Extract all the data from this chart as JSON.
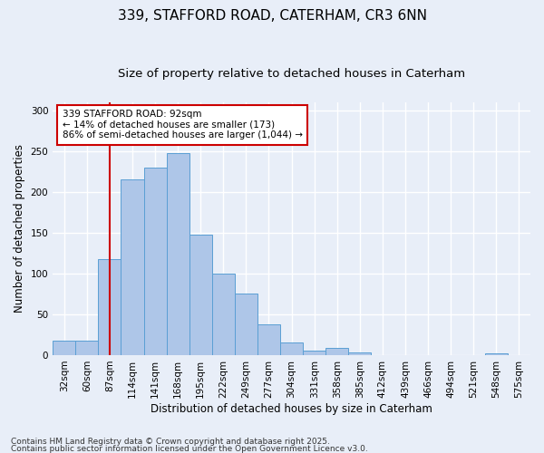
{
  "title": "339, STAFFORD ROAD, CATERHAM, CR3 6NN",
  "subtitle": "Size of property relative to detached houses in Caterham",
  "xlabel": "Distribution of detached houses by size in Caterham",
  "ylabel": "Number of detached properties",
  "categories": [
    "32sqm",
    "60sqm",
    "87sqm",
    "114sqm",
    "141sqm",
    "168sqm",
    "195sqm",
    "222sqm",
    "249sqm",
    "277sqm",
    "304sqm",
    "331sqm",
    "358sqm",
    "385sqm",
    "412sqm",
    "439sqm",
    "466sqm",
    "494sqm",
    "521sqm",
    "548sqm",
    "575sqm"
  ],
  "values": [
    18,
    18,
    118,
    215,
    230,
    248,
    148,
    100,
    75,
    38,
    15,
    5,
    9,
    3,
    0,
    0,
    0,
    0,
    0,
    2,
    0
  ],
  "bar_color": "#aec6e8",
  "bar_edge_color": "#5a9fd4",
  "annotation_line1": "339 STAFFORD ROAD: 92sqm",
  "annotation_line2": "← 14% of detached houses are smaller (173)",
  "annotation_line3": "86% of semi-detached houses are larger (1,044) →",
  "annotation_box_color": "#ffffff",
  "annotation_box_edge_color": "#cc0000",
  "vline_color": "#cc0000",
  "vline_x_index": 2,
  "footer_line1": "Contains HM Land Registry data © Crown copyright and database right 2025.",
  "footer_line2": "Contains public sector information licensed under the Open Government Licence v3.0.",
  "background_color": "#e8eef8",
  "plot_background_color": "#e8eef8",
  "grid_color": "#ffffff",
  "ylim": [
    0,
    310
  ],
  "yticks": [
    0,
    50,
    100,
    150,
    200,
    250,
    300
  ],
  "title_fontsize": 11,
  "subtitle_fontsize": 9.5,
  "axis_label_fontsize": 8.5,
  "tick_fontsize": 7.5,
  "annotation_fontsize": 7.5,
  "footer_fontsize": 6.5
}
